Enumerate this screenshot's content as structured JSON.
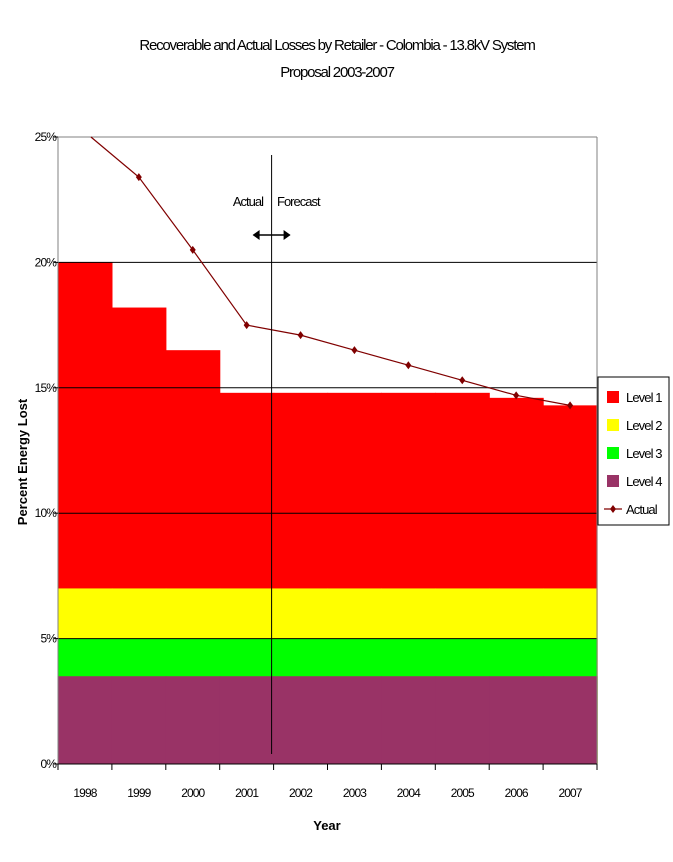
{
  "chart_data": {
    "type": "area",
    "title": "Recoverable and Actual Losses by Retailer - Colombia - 13.8kV System",
    "subtitle": "Proposal 2003-2007",
    "xlabel": "Year",
    "ylabel": "Percent Energy Lost",
    "categories": [
      "1998",
      "1999",
      "2000",
      "2001",
      "2002",
      "2003",
      "2004",
      "2005",
      "2006",
      "2007"
    ],
    "ylim": [
      0,
      25
    ],
    "yticks": [
      "0%",
      "5%",
      "10%",
      "15%",
      "20%",
      "25%"
    ],
    "grid": true,
    "legend_position": "right",
    "series": [
      {
        "name": "Level 1",
        "kind": "stacked-area",
        "color": "#ff0000",
        "values": [
          13.0,
          11.2,
          9.5,
          7.8,
          7.8,
          7.8,
          7.8,
          7.8,
          7.6,
          7.3
        ]
      },
      {
        "name": "Level 2",
        "kind": "stacked-area",
        "color": "#ffff00",
        "values": [
          2.0,
          2.0,
          2.0,
          2.0,
          2.0,
          2.0,
          2.0,
          2.0,
          2.0,
          2.0
        ]
      },
      {
        "name": "Level 3",
        "kind": "stacked-area",
        "color": "#00ff00",
        "values": [
          1.5,
          1.5,
          1.5,
          1.5,
          1.5,
          1.5,
          1.5,
          1.5,
          1.5,
          1.5
        ]
      },
      {
        "name": "Level 4",
        "kind": "stacked-area",
        "color": "#993366",
        "values": [
          3.5,
          3.5,
          3.5,
          3.5,
          3.5,
          3.5,
          3.5,
          3.5,
          3.5,
          3.5
        ]
      },
      {
        "name": "Actual",
        "kind": "line",
        "color": "#800000",
        "values": [
          25.2,
          23.4,
          20.5,
          17.5,
          17.1,
          16.5,
          15.9,
          15.3,
          14.7,
          14.3
        ]
      }
    ],
    "annotations": {
      "actual_label": "Actual",
      "forecast_label": "Forecast",
      "divider_after": "2001"
    }
  }
}
